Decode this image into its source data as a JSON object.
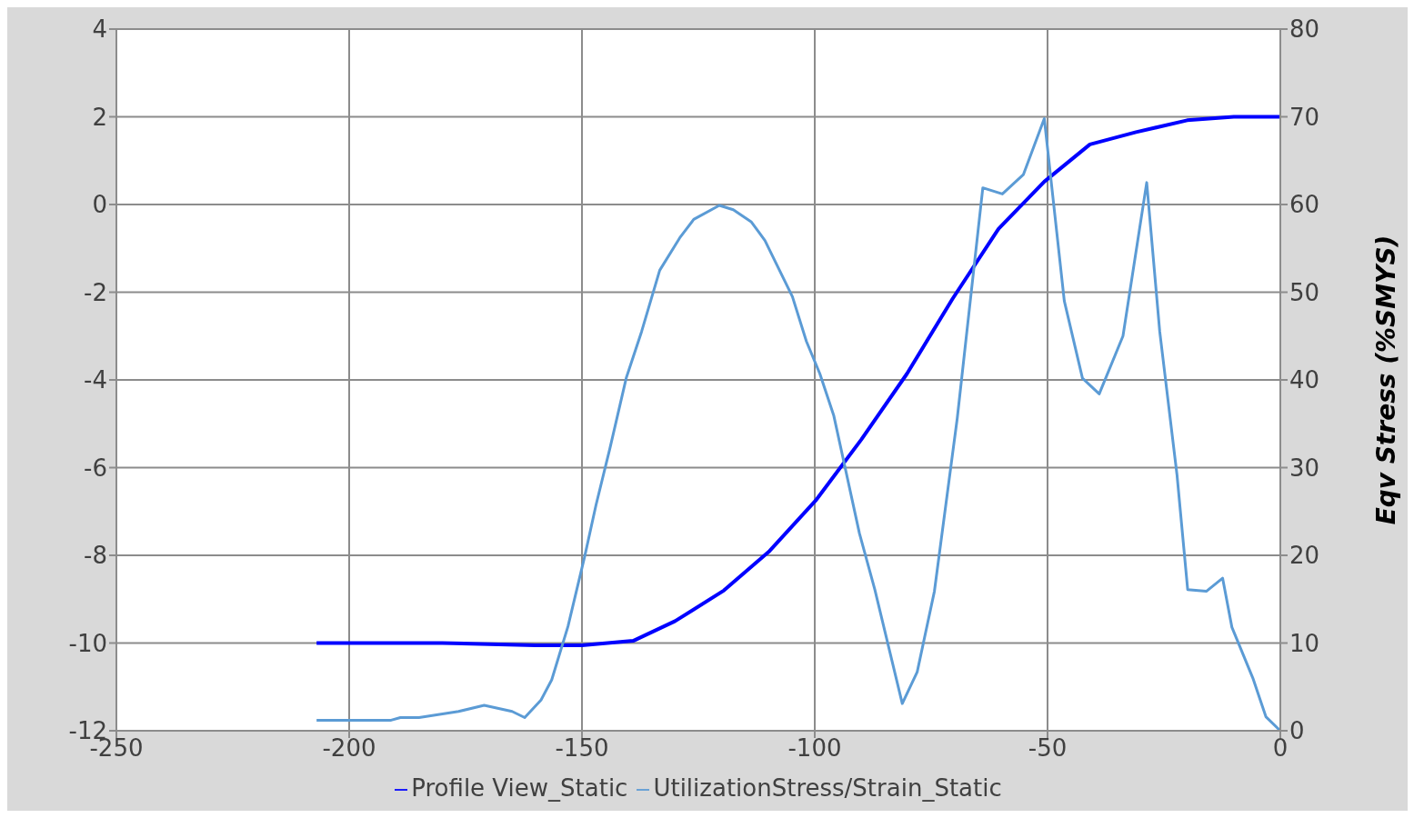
{
  "chart_data": {
    "type": "line",
    "ylabel": null,
    "y2label": "Eqv Stress (%SMYS)",
    "xlim": [
      -250,
      0
    ],
    "xticks": [
      -250,
      -200,
      -150,
      -100,
      -50,
      0
    ],
    "ylim": [
      -12,
      4
    ],
    "yticks": [
      -12,
      -10,
      -8,
      -6,
      -4,
      -2,
      0,
      2,
      4
    ],
    "y2lim": [
      0,
      80
    ],
    "y2ticks": [
      0,
      10,
      20,
      30,
      40,
      50,
      60,
      70,
      80
    ],
    "grid": true,
    "legend": "bottom",
    "marker": "none",
    "line_style": "solid",
    "series": [
      {
        "name": "Profile View_Static",
        "color": "#0000ff",
        "x": [
          -207,
          -180,
          -160,
          -150,
          -139,
          -130,
          -119.5,
          -109.7,
          -99.8,
          -90,
          -80.2,
          -70.4,
          -60.5,
          -50.7,
          -40.9,
          -31,
          -20,
          -10,
          0
        ],
        "values": [
          -10,
          -10,
          -10.05,
          -10.05,
          -9.95,
          -9.5,
          -8.8,
          -7.9,
          -6.75,
          -5.36,
          -3.86,
          -2.15,
          -0.55,
          0.52,
          1.37,
          1.65,
          1.92,
          2,
          2
        ]
      },
      {
        "name": "UtilizationStress/Strain_Static",
        "color": "#5b9bd5",
        "axis": "y2",
        "x": [
          -207,
          -191,
          -189,
          -185,
          -176.5,
          -171,
          -165,
          -162.3,
          -158.8,
          -156.5,
          -153,
          -149.4,
          -147,
          -144,
          -140.5,
          -137.2,
          -133.3,
          -129,
          -126,
          -120.5,
          -117.5,
          -113.6,
          -110.7,
          -104.8,
          -101.8,
          -98.9,
          -95.9,
          -90.4,
          -87.1,
          -81.2,
          -78,
          -74.3,
          -69.4,
          -63.9,
          -59.7,
          -55.2,
          -50.7,
          -46.4,
          -42.5,
          -38.9,
          -33.8,
          -28.7,
          -25.9,
          -22.2,
          -19.9,
          -15.9,
          -12.4,
          -10.4,
          -5.9,
          -3.1,
          0
        ],
        "values": [
          1.2,
          1.2,
          1.5,
          1.5,
          2.2,
          2.9,
          2.2,
          1.5,
          3.5,
          5.8,
          11.9,
          19.9,
          25.7,
          32.2,
          40.2,
          45.5,
          52.5,
          56.2,
          58.3,
          59.9,
          59.4,
          58,
          55.9,
          49.5,
          44.4,
          40.7,
          35.9,
          22.5,
          16.1,
          3.1,
          6.7,
          15.9,
          35.6,
          61.9,
          61.2,
          63.4,
          69.8,
          49,
          40.2,
          38.4,
          45,
          62.5,
          45.5,
          29.2,
          16.1,
          15.9,
          17.4,
          11.8,
          6,
          1.6,
          0
        ]
      }
    ]
  }
}
